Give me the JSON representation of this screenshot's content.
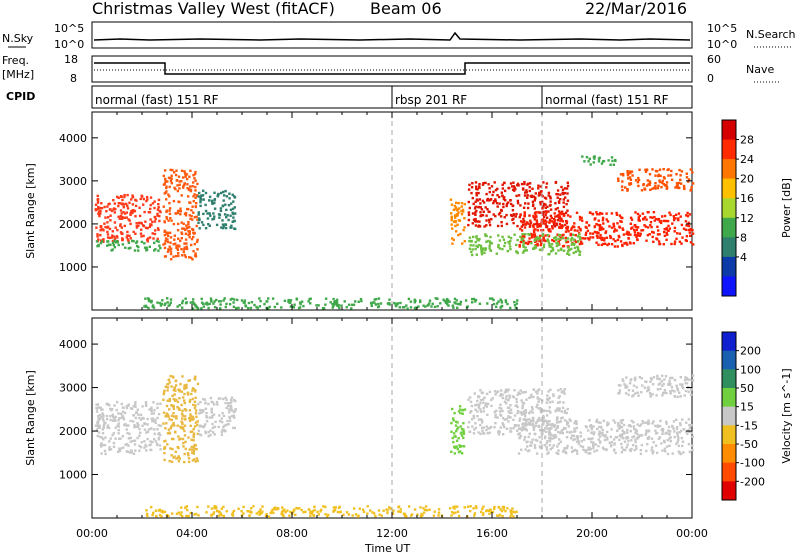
{
  "header": {
    "title": "Christmas Valley West (fitACF)",
    "beam": "Beam 06",
    "date": "22/Mar/2016"
  },
  "left_labels": {
    "nsky": "N.Sky",
    "freq_line1": "Freq.",
    "freq_line2": "[MHz]",
    "cpid": "CPID"
  },
  "right_labels": {
    "nsearch": "N.Search",
    "nave": "Nave"
  },
  "nsky_axis": {
    "top": "10^5",
    "bottom": "10^0"
  },
  "freq_axis": {
    "left_ticks": [
      "18",
      "8"
    ],
    "right_ticks": [
      "60",
      "0"
    ]
  },
  "cpid_segments": [
    {
      "label": "normal (fast) 151 RF",
      "start_hour": 0,
      "end_hour": 12
    },
    {
      "label": "rbsp 201 RF",
      "start_hour": 12,
      "end_hour": 18
    },
    {
      "label": "normal (fast) 151 RF",
      "start_hour": 18,
      "end_hour": 24
    }
  ],
  "x_axis": {
    "label": "Time UT",
    "ticks": [
      "00:00",
      "04:00",
      "08:00",
      "12:00",
      "16:00",
      "20:00",
      "00:00"
    ]
  },
  "chart_data": [
    {
      "type": "heatmap",
      "name": "power",
      "ylabel": "Slant Range [km]",
      "xlim_hours": [
        0,
        24
      ],
      "ylim": [
        0,
        4600
      ],
      "yticks": [
        1000,
        2000,
        3000,
        4000
      ],
      "colorbar": {
        "label": "Power [dB]",
        "ticks": [
          "28",
          "24",
          "20",
          "16",
          "12",
          "8",
          "4"
        ],
        "colors": [
          "#d50000",
          "#ff2a00",
          "#ff7700",
          "#ffc000",
          "#a8d830",
          "#3fa84a",
          "#2f7f6f",
          "#0c3aa8",
          "#0f14ff"
        ]
      },
      "regions": [
        {
          "t0": 0.1,
          "t1": 2.7,
          "r0": 1600,
          "r1": 2700,
          "color": "#ff3a1a"
        },
        {
          "t0": 0.1,
          "t1": 2.7,
          "r0": 1400,
          "r1": 1650,
          "color": "#3fa84a"
        },
        {
          "t0": 2.8,
          "t1": 4.2,
          "r0": 1200,
          "r1": 3300,
          "color": "#ff5a10"
        },
        {
          "t0": 4.2,
          "t1": 5.7,
          "r0": 1900,
          "r1": 2800,
          "color": "#2f7f6f"
        },
        {
          "t0": 14.3,
          "t1": 14.9,
          "r0": 1500,
          "r1": 2600,
          "color": "#ff8a00"
        },
        {
          "t0": 15.0,
          "t1": 19.0,
          "r0": 1950,
          "r1": 3000,
          "color": "#e01500"
        },
        {
          "t0": 17.0,
          "t1": 24.0,
          "r0": 1500,
          "r1": 2300,
          "color": "#ff2000"
        },
        {
          "t0": 15.0,
          "t1": 19.5,
          "r0": 1300,
          "r1": 1800,
          "color": "#6ebf40"
        },
        {
          "t0": 21.0,
          "t1": 24.0,
          "r0": 2800,
          "r1": 3300,
          "color": "#ff5000"
        },
        {
          "t0": 19.5,
          "t1": 21.0,
          "r0": 3400,
          "r1": 3600,
          "color": "#3fa84a"
        },
        {
          "t0": 2.0,
          "t1": 17.0,
          "r0": 60,
          "r1": 300,
          "color": "#3fa84a"
        }
      ]
    },
    {
      "type": "heatmap",
      "name": "velocity",
      "ylabel": "Slant Range [km]",
      "xlim_hours": [
        0,
        24
      ],
      "ylim": [
        0,
        4600
      ],
      "yticks": [
        1000,
        2000,
        3000,
        4000
      ],
      "colorbar": {
        "label": "Velocity [m s^-1]",
        "ticks": [
          "200",
          "100",
          "50",
          "15",
          "-15",
          "-50",
          "-100",
          "-200"
        ],
        "colors": [
          "#1020d0",
          "#1a60b0",
          "#2f8f5f",
          "#70d040",
          "#c8c8c8",
          "#f0c020",
          "#ff8c00",
          "#ff4a00",
          "#e00000"
        ]
      },
      "regions": [
        {
          "t0": 0.1,
          "t1": 2.7,
          "r0": 1500,
          "r1": 2700,
          "color": "#c8c8c8"
        },
        {
          "t0": 2.8,
          "t1": 4.2,
          "r0": 1300,
          "r1": 3300,
          "color": "#e8b840"
        },
        {
          "t0": 4.2,
          "t1": 5.7,
          "r0": 1900,
          "r1": 2800,
          "color": "#c8c8c8"
        },
        {
          "t0": 14.3,
          "t1": 14.9,
          "r0": 1500,
          "r1": 2600,
          "color": "#70d040"
        },
        {
          "t0": 15.0,
          "t1": 19.0,
          "r0": 1950,
          "r1": 3000,
          "color": "#c8c8c8"
        },
        {
          "t0": 17.0,
          "t1": 24.0,
          "r0": 1500,
          "r1": 2300,
          "color": "#c8c8c8"
        },
        {
          "t0": 21.0,
          "t1": 24.0,
          "r0": 2800,
          "r1": 3300,
          "color": "#c8c8c8"
        },
        {
          "t0": 2.0,
          "t1": 17.0,
          "r0": 60,
          "r1": 300,
          "color": "#f0c020"
        }
      ]
    }
  ]
}
